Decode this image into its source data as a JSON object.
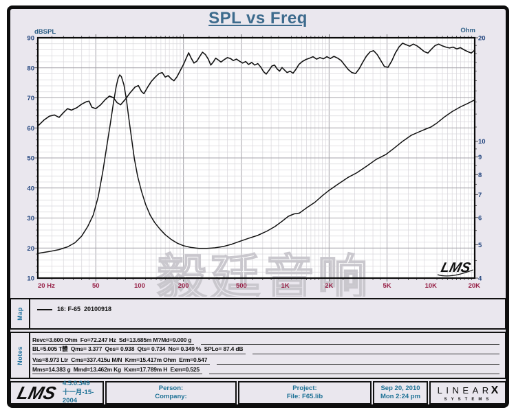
{
  "title": "SPL vs Freq",
  "watermark": "毅廷音响",
  "inner_logo": "LMS",
  "colors": {
    "title_steel_blue": "#3d6b8d",
    "x_tick_maroon": "#961f45",
    "y_tick_navy": "#23457e",
    "axis_title_blue": "#2d5f86",
    "side_label_blue": "#1d6f9c",
    "footer_teal": "#1d7195",
    "grid_minor": "#d8d6db",
    "grid_major": "#a3a1a8",
    "curve_black": "#111111",
    "watermark_gray": "#c8c6cc"
  },
  "map": {
    "label": "Map",
    "legend": "16: F-65  20100918"
  },
  "notes": {
    "label": "Notes",
    "lines": [
      "Revc=3.600 Ohm  Fo=72.247 Hz  Sd=13.685m M?Md=9.000 g",
      "BL=5.005 T體  Qms= 3.377  Qes= 0.938  Qts= 0.734  No= 0.349 %  SPLo= 87.4 dB",
      "Vas=8.973 Ltr  Cms=337.415u M/N  Krm=15.417m Ohm  Erm=0.547",
      "Mms=14.383 g  Mmd=13.462m Kg  Kxm=17.789m H  Exm=0.525"
    ]
  },
  "footer": {
    "lms_logo": "LMS",
    "version": "4.5.0.349",
    "version_date": "十一月-15-2004",
    "person_label": "Person:",
    "company_label": "Company:",
    "project_label": "Project:",
    "file_label": "File: F65.lib",
    "date": "Sep 20, 2010",
    "time": "Mon  2:24 pm",
    "linearx_letters": "LINEAR",
    "linearx_x": "X",
    "linearx_sub": "SYSTEMS"
  },
  "chart_data": {
    "type": "line",
    "title": "SPL vs Freq",
    "grid": true,
    "x_axis": {
      "scale": "log",
      "min": 20,
      "max": 20000,
      "ticks": [
        {
          "f": 20,
          "label": "20  Hz"
        },
        {
          "f": 50,
          "label": "50"
        },
        {
          "f": 100,
          "label": "100"
        },
        {
          "f": 200,
          "label": "200"
        },
        {
          "f": 500,
          "label": "500"
        },
        {
          "f": 1000,
          "label": "1K"
        },
        {
          "f": 2000,
          "label": "2K"
        },
        {
          "f": 5000,
          "label": "5K"
        },
        {
          "f": 10000,
          "label": "10K"
        },
        {
          "f": 20000,
          "label": "20K"
        }
      ]
    },
    "y_left": {
      "label": "dBSPL",
      "min": 10,
      "max": 90,
      "ticks": [
        90,
        80,
        70,
        60,
        50,
        40,
        30,
        20,
        10
      ]
    },
    "y_right": {
      "label": "Ohm",
      "scale": "log",
      "min": 4,
      "max": 20,
      "ticks": [
        20,
        10,
        9,
        8,
        7,
        6,
        5,
        4
      ]
    },
    "series": [
      {
        "name": "SPL (16: F-65 20100918)",
        "unit": "dBSPL",
        "points": [
          [
            20,
            60.6
          ],
          [
            22,
            62.6
          ],
          [
            24,
            63.9
          ],
          [
            26,
            64.3
          ],
          [
            28,
            63.5
          ],
          [
            30,
            65.1
          ],
          [
            32,
            66.4
          ],
          [
            34,
            65.9
          ],
          [
            37,
            66.7
          ],
          [
            40,
            67.9
          ],
          [
            43,
            68.7
          ],
          [
            45,
            68.9
          ],
          [
            47,
            66.9
          ],
          [
            50,
            66.4
          ],
          [
            54,
            67.7
          ],
          [
            58,
            69.4
          ],
          [
            62,
            70.6
          ],
          [
            66,
            70.1
          ],
          [
            70,
            68.4
          ],
          [
            74,
            67.7
          ],
          [
            80,
            69.6
          ],
          [
            86,
            71.7
          ],
          [
            93,
            73.6
          ],
          [
            98,
            74.1
          ],
          [
            103,
            72.1
          ],
          [
            107,
            71.4
          ],
          [
            113,
            73.4
          ],
          [
            120,
            75.4
          ],
          [
            128,
            76.9
          ],
          [
            136,
            78.1
          ],
          [
            143,
            78.4
          ],
          [
            150,
            76.9
          ],
          [
            157,
            77.4
          ],
          [
            165,
            76.3
          ],
          [
            172,
            75.7
          ],
          [
            180,
            76.9
          ],
          [
            190,
            79.1
          ],
          [
            200,
            81.1
          ],
          [
            209,
            83.2
          ],
          [
            217,
            85.0
          ],
          [
            226,
            83.2
          ],
          [
            236,
            81.6
          ],
          [
            247,
            82.2
          ],
          [
            258,
            83.7
          ],
          [
            270,
            85.2
          ],
          [
            283,
            84.4
          ],
          [
            296,
            82.9
          ],
          [
            308,
            80.9
          ],
          [
            320,
            81.9
          ],
          [
            333,
            83.2
          ],
          [
            347,
            82.6
          ],
          [
            362,
            81.9
          ],
          [
            380,
            82.7
          ],
          [
            400,
            83.4
          ],
          [
            420,
            83.1
          ],
          [
            440,
            82.4
          ],
          [
            462,
            82.9
          ],
          [
            485,
            82.2
          ],
          [
            510,
            81.6
          ],
          [
            535,
            82.1
          ],
          [
            560,
            81.1
          ],
          [
            588,
            81.8
          ],
          [
            617,
            80.9
          ],
          [
            648,
            81.4
          ],
          [
            680,
            80.2
          ],
          [
            710,
            78.7
          ],
          [
            740,
            77.9
          ],
          [
            775,
            79.2
          ],
          [
            810,
            80.6
          ],
          [
            845,
            80.9
          ],
          [
            880,
            79.6
          ],
          [
            915,
            78.9
          ],
          [
            950,
            80.1
          ],
          [
            990,
            79.2
          ],
          [
            1030,
            78.4
          ],
          [
            1080,
            78.9
          ],
          [
            1130,
            78.2
          ],
          [
            1180,
            79.4
          ],
          [
            1240,
            81.1
          ],
          [
            1310,
            82.1
          ],
          [
            1390,
            82.8
          ],
          [
            1470,
            83.2
          ],
          [
            1550,
            83.7
          ],
          [
            1640,
            82.9
          ],
          [
            1730,
            83.4
          ],
          [
            1830,
            83.0
          ],
          [
            1930,
            83.7
          ],
          [
            2040,
            83.1
          ],
          [
            2160,
            83.8
          ],
          [
            2290,
            83.2
          ],
          [
            2420,
            82.4
          ],
          [
            2560,
            80.9
          ],
          [
            2710,
            79.4
          ],
          [
            2870,
            78.4
          ],
          [
            3040,
            78.1
          ],
          [
            3220,
            79.7
          ],
          [
            3410,
            81.9
          ],
          [
            3610,
            83.9
          ],
          [
            3820,
            85.3
          ],
          [
            4040,
            85.7
          ],
          [
            4280,
            84.4
          ],
          [
            4530,
            82.4
          ],
          [
            4800,
            80.4
          ],
          [
            5080,
            80.2
          ],
          [
            5380,
            82.2
          ],
          [
            5700,
            84.9
          ],
          [
            6030,
            86.9
          ],
          [
            6390,
            88.2
          ],
          [
            6760,
            87.7
          ],
          [
            7160,
            87.2
          ],
          [
            7580,
            87.9
          ],
          [
            8030,
            87.3
          ],
          [
            8500,
            86.4
          ],
          [
            9000,
            85.4
          ],
          [
            9530,
            84.9
          ],
          [
            10090,
            86.2
          ],
          [
            10680,
            87.4
          ],
          [
            11310,
            87.9
          ],
          [
            11980,
            87.3
          ],
          [
            12680,
            86.9
          ],
          [
            13430,
            86.6
          ],
          [
            14220,
            86.9
          ],
          [
            15060,
            86.3
          ],
          [
            15950,
            86.7
          ],
          [
            16890,
            86.0
          ],
          [
            17880,
            85.4
          ],
          [
            18940,
            84.9
          ],
          [
            20000,
            85.9
          ]
        ]
      },
      {
        "name": "Impedance (16: F-65 20100918)",
        "unit": "Ohm",
        "points": [
          [
            20,
            4.72
          ],
          [
            24,
            4.78
          ],
          [
            28,
            4.84
          ],
          [
            32,
            4.93
          ],
          [
            36,
            5.07
          ],
          [
            40,
            5.3
          ],
          [
            44,
            5.65
          ],
          [
            48,
            6.1
          ],
          [
            52,
            6.9
          ],
          [
            56,
            8.2
          ],
          [
            60,
            9.9
          ],
          [
            63,
            11.3
          ],
          [
            66,
            12.9
          ],
          [
            69,
            14.4
          ],
          [
            71,
            15.2
          ],
          [
            73,
            15.6
          ],
          [
            75,
            15.4
          ],
          [
            78,
            14.6
          ],
          [
            81,
            13.3
          ],
          [
            84,
            11.8
          ],
          [
            88,
            10.2
          ],
          [
            92,
            8.9
          ],
          [
            97,
            7.9
          ],
          [
            103,
            7.15
          ],
          [
            110,
            6.55
          ],
          [
            118,
            6.1
          ],
          [
            127,
            5.8
          ],
          [
            138,
            5.55
          ],
          [
            150,
            5.35
          ],
          [
            165,
            5.18
          ],
          [
            182,
            5.05
          ],
          [
            200,
            4.97
          ],
          [
            225,
            4.91
          ],
          [
            255,
            4.88
          ],
          [
            290,
            4.88
          ],
          [
            330,
            4.9
          ],
          [
            380,
            4.95
          ],
          [
            430,
            5.02
          ],
          [
            490,
            5.12
          ],
          [
            560,
            5.22
          ],
          [
            650,
            5.33
          ],
          [
            750,
            5.48
          ],
          [
            850,
            5.65
          ],
          [
            950,
            5.85
          ],
          [
            1050,
            6.05
          ],
          [
            1150,
            6.15
          ],
          [
            1250,
            6.18
          ],
          [
            1400,
            6.4
          ],
          [
            1600,
            6.65
          ],
          [
            1800,
            6.95
          ],
          [
            2000,
            7.2
          ],
          [
            2300,
            7.5
          ],
          [
            2700,
            7.85
          ],
          [
            3100,
            8.1
          ],
          [
            3600,
            8.45
          ],
          [
            4200,
            8.85
          ],
          [
            4900,
            9.15
          ],
          [
            5600,
            9.55
          ],
          [
            6400,
            10.0
          ],
          [
            7300,
            10.4
          ],
          [
            8300,
            10.65
          ],
          [
            9200,
            10.85
          ],
          [
            10000,
            11.0
          ],
          [
            11000,
            11.3
          ],
          [
            12500,
            11.8
          ],
          [
            14000,
            12.2
          ],
          [
            16000,
            12.6
          ],
          [
            18000,
            12.9
          ],
          [
            20000,
            13.2
          ]
        ]
      }
    ],
    "legend": [
      "16: F-65  20100918"
    ],
    "legend_position": "map-strip-below-chart"
  }
}
